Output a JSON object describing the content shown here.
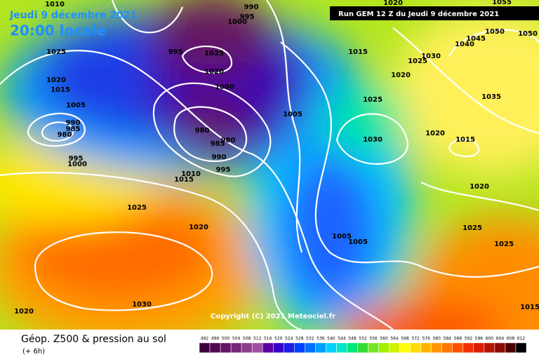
{
  "header": {
    "date": "Jeudi 9 décembre 2021",
    "time": "20:00 locale",
    "run": "Run GEM 12 Z du Jeudi 9 décembre 2021"
  },
  "footer": {
    "title": "Géop. Z500 & pression au sol",
    "lead": "(+ 6h)",
    "copyright": "Copyright (C) 2021 Meteociel.fr"
  },
  "isobar_labels": [
    1010,
    990,
    995,
    1000,
    1025,
    995,
    1025,
    1020,
    1015,
    1020,
    1015,
    1005,
    990,
    985,
    980,
    995,
    1000,
    1000,
    980,
    985,
    980,
    990,
    995,
    1010,
    1015,
    1025,
    1020,
    1030,
    1020,
    1020,
    1025,
    1030,
    1005,
    1020,
    1015,
    1020,
    1025,
    1025,
    1015,
    1005,
    1005,
    1045,
    1050,
    1040,
    1050,
    1030,
    1025,
    1035,
    1020,
    1055
  ],
  "colorbar": {
    "ticks": [
      492,
      496,
      500,
      504,
      508,
      512,
      516,
      520,
      524,
      528,
      532,
      536,
      540,
      544,
      548,
      552,
      556,
      560,
      564,
      568,
      572,
      576,
      580,
      584,
      588,
      592,
      596,
      600,
      604,
      608,
      612
    ],
    "colors": [
      "#3c003c",
      "#520a52",
      "#641464",
      "#782878",
      "#8c3c8c",
      "#a050a0",
      "#5a00a0",
      "#3c00c8",
      "#1e1ee6",
      "#0040ff",
      "#0070ff",
      "#00a0ff",
      "#00d0ff",
      "#00e6c8",
      "#00e678",
      "#32dc32",
      "#78e628",
      "#a0f000",
      "#d2f000",
      "#ffff00",
      "#ffdc00",
      "#ffb400",
      "#ff9600",
      "#ff7800",
      "#ff5000",
      "#f03200",
      "#dc1e00",
      "#b41400",
      "#8c0a00",
      "#500000",
      "#000000"
    ]
  }
}
